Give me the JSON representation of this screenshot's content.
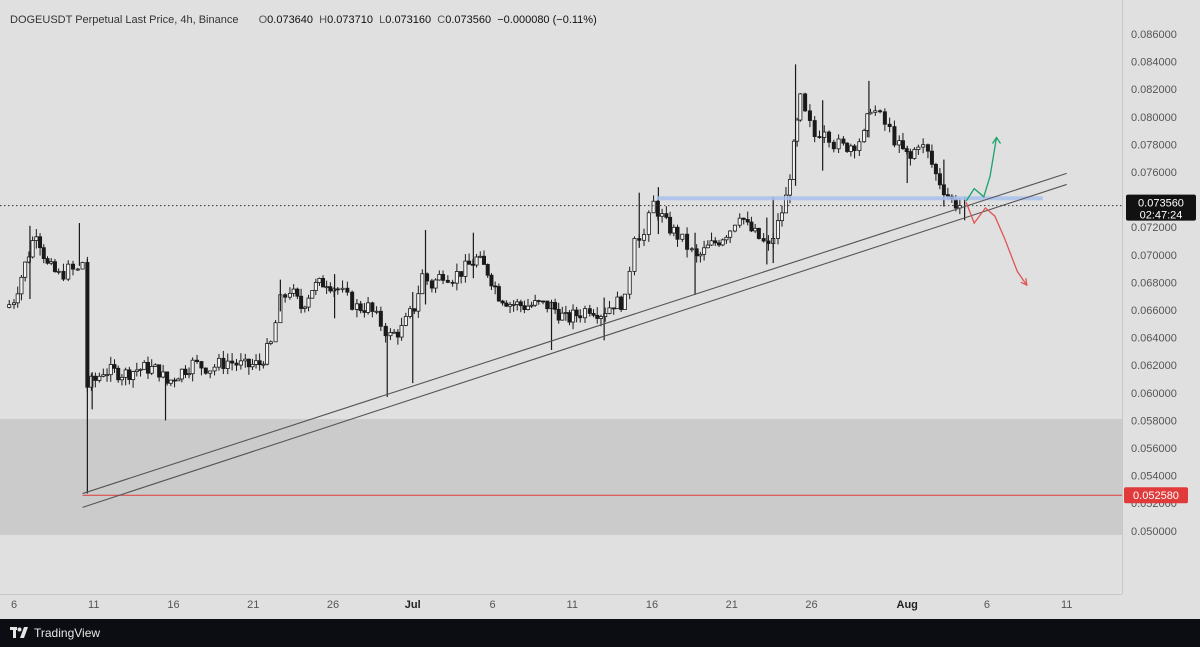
{
  "header": {
    "symbol": "DOGEUSDT Perpetual Last Price, 4h, Binance",
    "o_label": "O",
    "o_value": "0.073640",
    "h_label": "H",
    "h_value": "0.073710",
    "l_label": "L",
    "l_value": "0.073160",
    "c_label": "C",
    "c_value": "0.073560",
    "change": "−0.000080 (−0.11%)"
  },
  "footer": {
    "brand": "TradingView",
    "logo_icon": "tradingview-logo-icon"
  },
  "colors": {
    "background": "#e0e0e0",
    "zone": "#cbcbcb",
    "candle": "#1a1a1a",
    "support": "#e03a3a",
    "resistance": "#a9c1ee",
    "bull_path": "#1aa36b",
    "bear_path": "#e05555",
    "trendline": "#555555"
  },
  "chart_data": {
    "type": "candlestick",
    "symbol": "DOGEUSDT Perpetual",
    "interval": "4h",
    "exchange": "Binance",
    "ylim": [
      0.0495,
      0.0872
    ],
    "y_ticks": [
      "0.086000",
      "0.084000",
      "0.082000",
      "0.080000",
      "0.078000",
      "0.076000",
      "0.074000",
      "0.072000",
      "0.070000",
      "0.068000",
      "0.066000",
      "0.064000",
      "0.062000",
      "0.060000",
      "0.058000",
      "0.056000",
      "0.054000",
      "0.052000",
      "0.050000"
    ],
    "x_ticks": [
      "6",
      "11",
      "16",
      "21",
      "26",
      "Jul",
      "6",
      "11",
      "16",
      "21",
      "26",
      "Aug",
      "6",
      "11"
    ],
    "x_tick_index": [
      0,
      5,
      10,
      15,
      20,
      25,
      30,
      35,
      40,
      45,
      50,
      56,
      61,
      66
    ],
    "last_price": {
      "value": 0.07356,
      "label": "0.073560",
      "countdown": "02:47:24"
    },
    "support_level": {
      "value": 0.05258,
      "label": "0.052580"
    },
    "resistance_level": {
      "value": 0.0741,
      "from_index": 40.3,
      "to_index": 64.5
    },
    "demand_zone": {
      "low": 0.0497,
      "high": 0.0581
    },
    "trendlines": [
      {
        "from": [
          4.3,
          0.0527
        ],
        "to": [
          66,
          0.0759
        ]
      },
      {
        "from": [
          4.3,
          0.0517
        ],
        "to": [
          66,
          0.0751
        ]
      }
    ],
    "bull_projection": [
      [
        59.7,
        0.0739
      ],
      [
        60.2,
        0.0748
      ],
      [
        60.8,
        0.0742
      ],
      [
        61.2,
        0.0757
      ],
      [
        61.6,
        0.0785
      ]
    ],
    "bear_projection": [
      [
        59.7,
        0.0738
      ],
      [
        60.2,
        0.0723
      ],
      [
        60.9,
        0.0734
      ],
      [
        61.5,
        0.0728
      ],
      [
        62.1,
        0.0712
      ],
      [
        62.9,
        0.0688
      ],
      [
        63.5,
        0.0678
      ]
    ],
    "series_path": [
      [
        -0.6,
        0.066
      ],
      [
        0,
        0.0668
      ],
      [
        0.7,
        0.0693
      ],
      [
        1.4,
        0.0718
      ],
      [
        2.1,
        0.0692
      ],
      [
        2.8,
        0.0685
      ],
      [
        3.4,
        0.0689
      ],
      [
        4.0,
        0.0688
      ],
      [
        4.3,
        0.0695
      ],
      [
        4.6,
        0.0605
      ],
      [
        5.1,
        0.0609
      ],
      [
        5.6,
        0.0616
      ],
      [
        6.3,
        0.0615
      ],
      [
        7.0,
        0.0614
      ],
      [
        7.7,
        0.0617
      ],
      [
        8.4,
        0.0618
      ],
      [
        9.1,
        0.0616
      ],
      [
        9.6,
        0.0607
      ],
      [
        10.3,
        0.0614
      ],
      [
        11.2,
        0.0621
      ],
      [
        12.3,
        0.0618
      ],
      [
        13.4,
        0.0623
      ],
      [
        14.5,
        0.0619
      ],
      [
        15.4,
        0.0621
      ],
      [
        16.1,
        0.0635
      ],
      [
        16.7,
        0.0666
      ],
      [
        17.3,
        0.0675
      ],
      [
        18.0,
        0.0662
      ],
      [
        18.7,
        0.0676
      ],
      [
        19.6,
        0.0681
      ],
      [
        20.3,
        0.0675
      ],
      [
        20.9,
        0.0668
      ],
      [
        21.5,
        0.0662
      ],
      [
        22.2,
        0.0662
      ],
      [
        23.0,
        0.065
      ],
      [
        23.6,
        0.0641
      ],
      [
        24.3,
        0.0646
      ],
      [
        25.1,
        0.0662
      ],
      [
        25.6,
        0.0685
      ],
      [
        26.2,
        0.0678
      ],
      [
        26.9,
        0.0687
      ],
      [
        27.5,
        0.0684
      ],
      [
        28.3,
        0.069
      ],
      [
        29.0,
        0.0697
      ],
      [
        29.7,
        0.0688
      ],
      [
        30.4,
        0.0671
      ],
      [
        31.1,
        0.0665
      ],
      [
        32.0,
        0.0663
      ],
      [
        32.9,
        0.0664
      ],
      [
        33.7,
        0.0663
      ],
      [
        34.6,
        0.0653
      ],
      [
        35.5,
        0.0658
      ],
      [
        36.1,
        0.0662
      ],
      [
        36.8,
        0.0658
      ],
      [
        37.6,
        0.0665
      ],
      [
        38.3,
        0.0666
      ],
      [
        38.9,
        0.0716
      ],
      [
        39.5,
        0.0714
      ],
      [
        40.1,
        0.0737
      ],
      [
        40.9,
        0.0722
      ],
      [
        41.6,
        0.0714
      ],
      [
        42.2,
        0.0706
      ],
      [
        42.8,
        0.0697
      ],
      [
        43.5,
        0.0705
      ],
      [
        44.2,
        0.0711
      ],
      [
        44.9,
        0.0719
      ],
      [
        45.5,
        0.0731
      ],
      [
        46.0,
        0.072
      ],
      [
        46.7,
        0.0712
      ],
      [
        47.3,
        0.0705
      ],
      [
        47.9,
        0.0722
      ],
      [
        48.4,
        0.0741
      ],
      [
        48.9,
        0.0777
      ],
      [
        49.3,
        0.0812
      ],
      [
        49.6,
        0.0801
      ],
      [
        50.2,
        0.0786
      ],
      [
        50.8,
        0.0793
      ],
      [
        51.4,
        0.0781
      ],
      [
        52.0,
        0.0778
      ],
      [
        52.7,
        0.0781
      ],
      [
        53.3,
        0.0786
      ],
      [
        53.7,
        0.0808
      ],
      [
        54.3,
        0.0799
      ],
      [
        54.9,
        0.079
      ],
      [
        55.5,
        0.0778
      ],
      [
        56.2,
        0.0769
      ],
      [
        56.7,
        0.0782
      ],
      [
        57.3,
        0.0773
      ],
      [
        57.8,
        0.0758
      ],
      [
        58.3,
        0.0748
      ],
      [
        58.8,
        0.0739
      ],
      [
        59.3,
        0.0736
      ]
    ],
    "wicks": [
      [
        1.0,
        0.0668,
        0.0721
      ],
      [
        4.1,
        0.0692,
        0.0723
      ],
      [
        4.6,
        0.0527,
        0.0697
      ],
      [
        4.9,
        0.0588,
        0.0615
      ],
      [
        9.5,
        0.058,
        0.0615
      ],
      [
        16.7,
        0.0659,
        0.0682
      ],
      [
        20.1,
        0.0654,
        0.0686
      ],
      [
        23.4,
        0.0597,
        0.0648
      ],
      [
        25.0,
        0.0607,
        0.0673
      ],
      [
        25.8,
        0.0664,
        0.0718
      ],
      [
        28.8,
        0.0683,
        0.0716
      ],
      [
        33.7,
        0.0631,
        0.0666
      ],
      [
        37.0,
        0.0638,
        0.0669
      ],
      [
        39.2,
        0.0705,
        0.0745
      ],
      [
        40.4,
        0.0715,
        0.0749
      ],
      [
        42.7,
        0.0671,
        0.0716
      ],
      [
        47.2,
        0.0693,
        0.0727
      ],
      [
        47.6,
        0.0694,
        0.0742
      ],
      [
        49.0,
        0.075,
        0.0838
      ],
      [
        50.7,
        0.0761,
        0.0812
      ],
      [
        53.6,
        0.0785,
        0.0826
      ],
      [
        56.0,
        0.0752,
        0.0779
      ],
      [
        58.3,
        0.0735,
        0.0769
      ],
      [
        59.6,
        0.0725,
        0.0742
      ]
    ]
  }
}
